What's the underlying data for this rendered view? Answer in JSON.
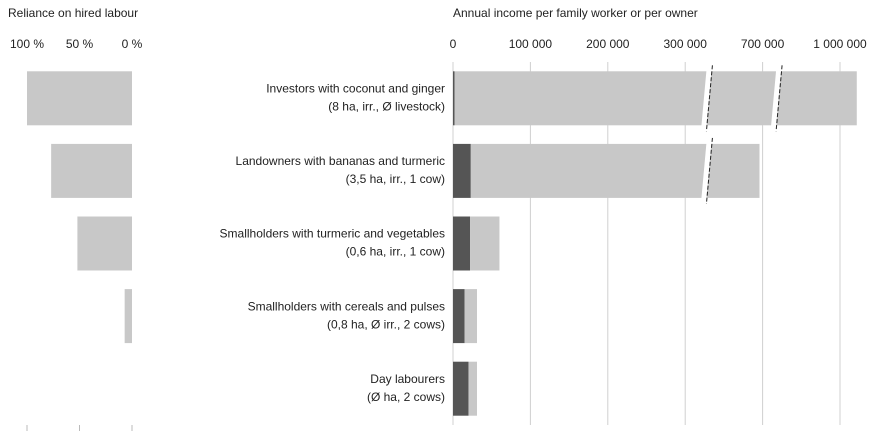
{
  "chart_data": [
    {
      "type": "bar",
      "orientation": "horizontal",
      "title": "Reliance on hired labour",
      "values": [
        100,
        77,
        52,
        7,
        0
      ],
      "color": "#c8c8c8",
      "xlim": [
        100,
        0
      ],
      "xticks": [
        {
          "value": 100,
          "label": "100 %"
        },
        {
          "value": 50,
          "label": "50 %"
        },
        {
          "value": 0,
          "label": "0 %"
        }
      ]
    },
    {
      "type": "stacked_bar",
      "orientation": "horizontal",
      "title": "Annual income per family worker or per owner",
      "categories": [
        [
          "Investors with coconut and ginger",
          "(8 ha, irr., Ø livestock)"
        ],
        [
          "Landowners with bananas and turmeric",
          "(3,5 ha, irr., 1 cow)"
        ],
        [
          "Smallholders with turmeric and vegetables",
          "(0,6 ha, irr., 1 cow)"
        ],
        [
          "Smallholders with cereals and pulses",
          "(0,8 ha, Ø irr., 2 cows)"
        ],
        [
          "Day labourers",
          "(Ø ha, 2 cows)"
        ]
      ],
      "series": [
        {
          "color": "#555555",
          "values": [
            2000,
            23000,
            22000,
            15000,
            20000
          ]
        },
        {
          "color": "#c8c8c8",
          "values": [
            1063000,
            661000,
            38000,
            16000,
            11000
          ]
        }
      ],
      "xlim": [
        0,
        1100000
      ],
      "xticks": [
        0,
        {
          "value": 100000,
          "label": "100 000"
        },
        {
          "value": 200000,
          "label": "200 000"
        },
        {
          "value": 300000,
          "label": "300 000"
        },
        {
          "value": 700000,
          "label": "700 000"
        },
        {
          "value": 1000000,
          "label": "1 000 000"
        }
      ],
      "axis_break": true,
      "grid": true
    }
  ]
}
